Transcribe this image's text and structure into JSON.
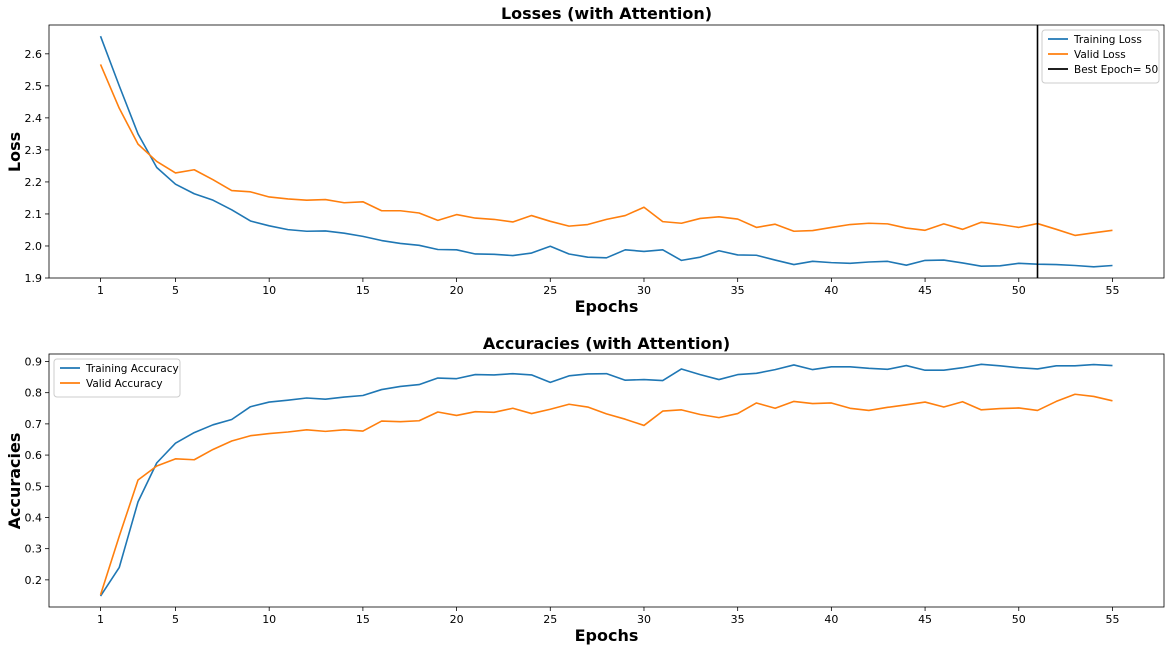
{
  "chart_data": [
    {
      "type": "line",
      "title": "Losses (with Attention)",
      "xlabel": "Epochs",
      "ylabel": "Loss",
      "xlim": [
        -1.75,
        57.75
      ],
      "ylim": [
        1.9,
        2.69
      ],
      "xticks": [
        1,
        5,
        10,
        15,
        20,
        25,
        30,
        35,
        40,
        45,
        50,
        55
      ],
      "yticks": [
        1.9,
        2.0,
        2.1,
        2.2,
        2.3,
        2.4,
        2.5,
        2.6
      ],
      "ytick_labels": [
        "1.9",
        "2.0",
        "2.1",
        "2.2",
        "2.3",
        "2.4",
        "2.5",
        "2.6"
      ],
      "grid": false,
      "legend_position": "top-right",
      "x": [
        1,
        2,
        3,
        4,
        5,
        6,
        7,
        8,
        9,
        10,
        11,
        12,
        13,
        14,
        15,
        16,
        17,
        18,
        19,
        20,
        21,
        22,
        23,
        24,
        25,
        26,
        27,
        28,
        29,
        30,
        31,
        32,
        33,
        34,
        35,
        36,
        37,
        38,
        39,
        40,
        41,
        42,
        43,
        44,
        45,
        46,
        47,
        48,
        49,
        50,
        51,
        52,
        53,
        54,
        55
      ],
      "series": [
        {
          "name": "Training Loss",
          "color": "#1f77b4",
          "values": [
            2.655,
            2.5,
            2.35,
            2.245,
            2.193,
            2.163,
            2.143,
            2.113,
            2.078,
            2.063,
            2.051,
            2.046,
            2.047,
            2.04,
            2.03,
            2.017,
            2.008,
            2.002,
            1.989,
            1.988,
            1.975,
            1.974,
            1.97,
            1.978,
            1.999,
            1.975,
            1.965,
            1.963,
            1.988,
            1.983,
            1.988,
            1.955,
            1.965,
            1.985,
            1.972,
            1.971,
            1.956,
            1.942,
            1.952,
            1.948,
            1.946,
            1.95,
            1.952,
            1.94,
            1.955,
            1.956,
            1.947,
            1.937,
            1.938,
            1.946,
            1.943,
            1.942,
            1.939,
            1.935,
            1.939
          ]
        },
        {
          "name": "Valid Loss",
          "color": "#ff7f0e",
          "values": [
            2.567,
            2.43,
            2.318,
            2.264,
            2.228,
            2.238,
            2.207,
            2.173,
            2.169,
            2.153,
            2.147,
            2.143,
            2.145,
            2.135,
            2.138,
            2.11,
            2.11,
            2.103,
            2.08,
            2.098,
            2.087,
            2.083,
            2.075,
            2.095,
            2.077,
            2.062,
            2.067,
            2.083,
            2.095,
            2.121,
            2.076,
            2.071,
            2.086,
            2.091,
            2.084,
            2.058,
            2.068,
            2.046,
            2.048,
            2.058,
            2.067,
            2.071,
            2.069,
            2.056,
            2.049,
            2.069,
            2.052,
            2.074,
            2.067,
            2.058,
            2.07,
            2.052,
            2.033,
            2.041,
            2.049
          ]
        }
      ],
      "vline": {
        "name": "Best Epoch= 50",
        "x": 51,
        "color": "#000000"
      }
    },
    {
      "type": "line",
      "title": "Accuracies (with Attention)",
      "xlabel": "Epochs",
      "ylabel": "Accuracies",
      "xlim": [
        -1.75,
        57.75
      ],
      "ylim": [
        0.113,
        0.924
      ],
      "xticks": [
        1,
        5,
        10,
        15,
        20,
        25,
        30,
        35,
        40,
        45,
        50,
        55
      ],
      "yticks": [
        0.2,
        0.3,
        0.4,
        0.5,
        0.6,
        0.7,
        0.8,
        0.9
      ],
      "ytick_labels": [
        "0.2",
        "0.3",
        "0.4",
        "0.5",
        "0.6",
        "0.7",
        "0.8",
        "0.9"
      ],
      "grid": false,
      "legend_position": "top-left",
      "x": [
        1,
        2,
        3,
        4,
        5,
        6,
        7,
        8,
        9,
        10,
        11,
        12,
        13,
        14,
        15,
        16,
        17,
        18,
        19,
        20,
        21,
        22,
        23,
        24,
        25,
        26,
        27,
        28,
        29,
        30,
        31,
        32,
        33,
        34,
        35,
        36,
        37,
        38,
        39,
        40,
        41,
        42,
        43,
        44,
        45,
        46,
        47,
        48,
        49,
        50,
        51,
        52,
        53,
        54,
        55
      ],
      "series": [
        {
          "name": "Training Accuracy",
          "color": "#1f77b4",
          "values": [
            0.148,
            0.24,
            0.45,
            0.575,
            0.638,
            0.672,
            0.697,
            0.714,
            0.755,
            0.77,
            0.776,
            0.783,
            0.779,
            0.786,
            0.791,
            0.81,
            0.82,
            0.826,
            0.847,
            0.845,
            0.858,
            0.857,
            0.861,
            0.857,
            0.833,
            0.854,
            0.86,
            0.861,
            0.84,
            0.842,
            0.839,
            0.876,
            0.858,
            0.842,
            0.858,
            0.862,
            0.874,
            0.889,
            0.874,
            0.883,
            0.883,
            0.878,
            0.875,
            0.887,
            0.872,
            0.872,
            0.88,
            0.891,
            0.886,
            0.88,
            0.876,
            0.886,
            0.886,
            0.89,
            0.887
          ]
        },
        {
          "name": "Valid Accuracy",
          "color": "#ff7f0e",
          "values": [
            0.152,
            0.34,
            0.52,
            0.565,
            0.588,
            0.585,
            0.618,
            0.645,
            0.662,
            0.669,
            0.674,
            0.681,
            0.676,
            0.681,
            0.677,
            0.709,
            0.707,
            0.71,
            0.738,
            0.727,
            0.739,
            0.737,
            0.75,
            0.733,
            0.747,
            0.763,
            0.754,
            0.732,
            0.715,
            0.695,
            0.741,
            0.745,
            0.73,
            0.72,
            0.733,
            0.767,
            0.75,
            0.772,
            0.765,
            0.767,
            0.75,
            0.743,
            0.753,
            0.761,
            0.77,
            0.754,
            0.771,
            0.745,
            0.749,
            0.751,
            0.743,
            0.772,
            0.795,
            0.788,
            0.774
          ]
        }
      ]
    }
  ]
}
